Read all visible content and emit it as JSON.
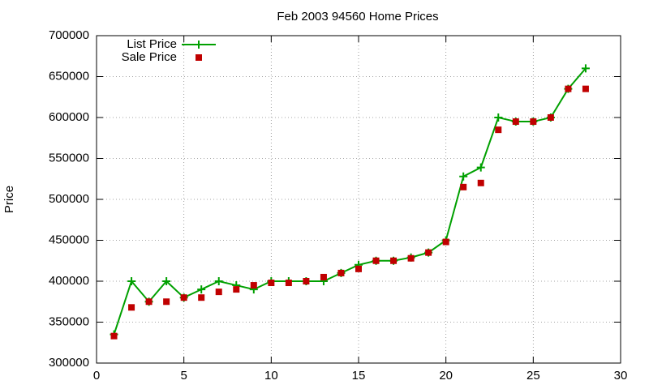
{
  "chart_data": {
    "type": "line",
    "title": "Feb 2003 94560 Home Prices",
    "y_label": "Price",
    "x": [
      1,
      2,
      3,
      4,
      5,
      6,
      7,
      8,
      9,
      10,
      11,
      12,
      13,
      14,
      15,
      16,
      17,
      18,
      19,
      20,
      21,
      22,
      23,
      24,
      25,
      26,
      27,
      28
    ],
    "series": [
      {
        "name": "List Price",
        "color": "#00a000",
        "style": "linespoints",
        "values": [
          335000,
          400000,
          375000,
          400000,
          380000,
          390000,
          400000,
          395000,
          390000,
          400000,
          400000,
          400000,
          400000,
          410000,
          420000,
          425000,
          425000,
          429000,
          435000,
          450000,
          528000,
          539000,
          600000,
          595000,
          595000,
          600000,
          635000,
          660000
        ]
      },
      {
        "name": "Sale Price",
        "color": "#c00000",
        "style": "points",
        "values": [
          333000,
          368000,
          375000,
          375000,
          380000,
          380000,
          387000,
          390000,
          395000,
          398000,
          398000,
          400000,
          405000,
          410000,
          415000,
          425000,
          425000,
          428000,
          435000,
          448000,
          515000,
          520000,
          585000,
          595000,
          595000,
          600000,
          635000,
          635000
        ]
      }
    ],
    "xlim": [
      0,
      30
    ],
    "xticks": [
      0,
      5,
      10,
      15,
      20,
      25,
      30
    ],
    "ylim": [
      300000,
      700000
    ],
    "yticks": [
      300000,
      350000,
      400000,
      450000,
      500000,
      550000,
      600000,
      650000,
      700000
    ],
    "grid": true,
    "legend": "top-left"
  }
}
